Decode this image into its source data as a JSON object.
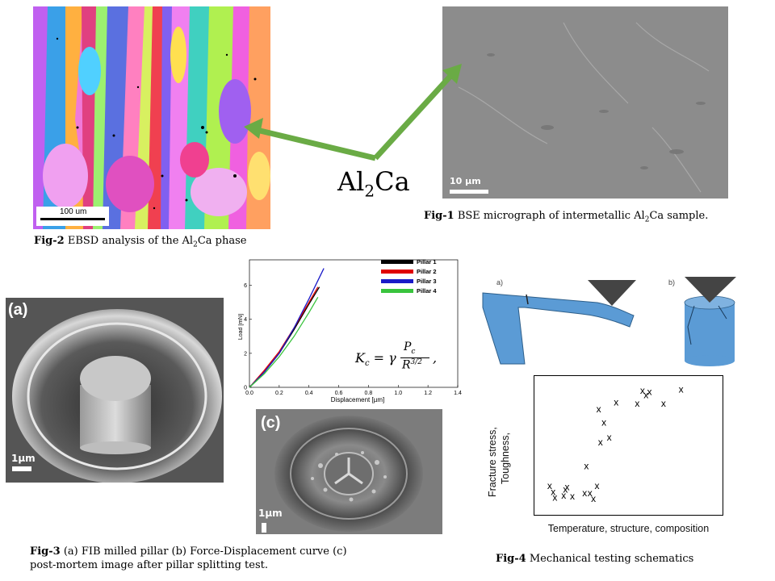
{
  "al2ca_label": {
    "main": "Al",
    "sub": "2",
    "tail": "Ca"
  },
  "fig1": {
    "scale_label": "10 µm",
    "caption_bold": "Fig-1",
    "caption_pre": " BSE micrograph of intermetallic Al",
    "caption_sub": "2",
    "caption_post": "Ca sample."
  },
  "fig2": {
    "scale_label": "100 um",
    "caption_bold": "Fig-2",
    "caption_pre": " EBSD analysis of the Al",
    "caption_sub": "2",
    "caption_post": "Ca phase"
  },
  "fig3": {
    "panel_a": "(a)",
    "panel_c": "(c)",
    "scale_a": "1µm",
    "scale_c": "1µm",
    "caption_bold": "Fig-3",
    "caption_line1": " (a) FIB milled pillar (b) Force-Displacement curve (c)",
    "caption_line2": "post-mortem image after pillar splitting test."
  },
  "chart_data": {
    "type": "line",
    "xlabel": "Displacement [µm]",
    "ylabel": "Load [mN]",
    "xlim": [
      0,
      1.4
    ],
    "ylim": [
      0,
      7.5
    ],
    "xticks": [
      "0.0",
      "0.2",
      "0.4",
      "0.6",
      "0.8",
      "1.0",
      "1.2",
      "1.4"
    ],
    "yticks": [
      "0",
      "2",
      "4",
      "6"
    ],
    "legend_position": "top-right",
    "formula": "Kc = γ Pc / R^(3/2),",
    "series": [
      {
        "name": "Pillar 1",
        "color": "#000000",
        "x": [
          0,
          0.1,
          0.2,
          0.3,
          0.4,
          0.47
        ],
        "y": [
          0,
          0.9,
          2.0,
          3.4,
          4.9,
          5.9
        ]
      },
      {
        "name": "Pillar 2",
        "color": "#e00000",
        "x": [
          0,
          0.1,
          0.2,
          0.3,
          0.4,
          0.46
        ],
        "y": [
          0,
          1.0,
          2.1,
          3.5,
          5.0,
          5.9
        ]
      },
      {
        "name": "Pillar 3",
        "color": "#1a1ac8",
        "x": [
          0,
          0.1,
          0.2,
          0.3,
          0.4,
          0.5
        ],
        "y": [
          0,
          0.9,
          2.0,
          3.5,
          5.2,
          7.0
        ]
      },
      {
        "name": "Pillar 4",
        "color": "#39c43d",
        "x": [
          0,
          0.1,
          0.2,
          0.3,
          0.4,
          0.46
        ],
        "y": [
          0,
          0.8,
          1.8,
          3.0,
          4.4,
          5.3
        ]
      }
    ]
  },
  "fig4": {
    "label_a": "a)",
    "label_b": "b)",
    "plot_ylabel_1": "Fracture stress,",
    "plot_ylabel_2": "Toughness,",
    "plot_xlabel": "Temperature, structure, composition",
    "marker": "x",
    "points": [
      [
        0.05,
        0.15
      ],
      [
        0.07,
        0.1
      ],
      [
        0.08,
        0.05
      ],
      [
        0.14,
        0.12
      ],
      [
        0.15,
        0.14
      ],
      [
        0.13,
        0.07
      ],
      [
        0.18,
        0.06
      ],
      [
        0.25,
        0.09
      ],
      [
        0.28,
        0.09
      ],
      [
        0.3,
        0.04
      ],
      [
        0.32,
        0.15
      ],
      [
        0.26,
        0.32
      ],
      [
        0.34,
        0.52
      ],
      [
        0.39,
        0.56
      ],
      [
        0.36,
        0.69
      ],
      [
        0.33,
        0.8
      ],
      [
        0.43,
        0.86
      ],
      [
        0.55,
        0.85
      ],
      [
        0.58,
        0.96
      ],
      [
        0.62,
        0.95
      ],
      [
        0.6,
        0.92
      ],
      [
        0.7,
        0.85
      ],
      [
        0.8,
        0.97
      ]
    ],
    "caption_bold": "Fig-4",
    "caption": " Mechanical testing schematics"
  }
}
